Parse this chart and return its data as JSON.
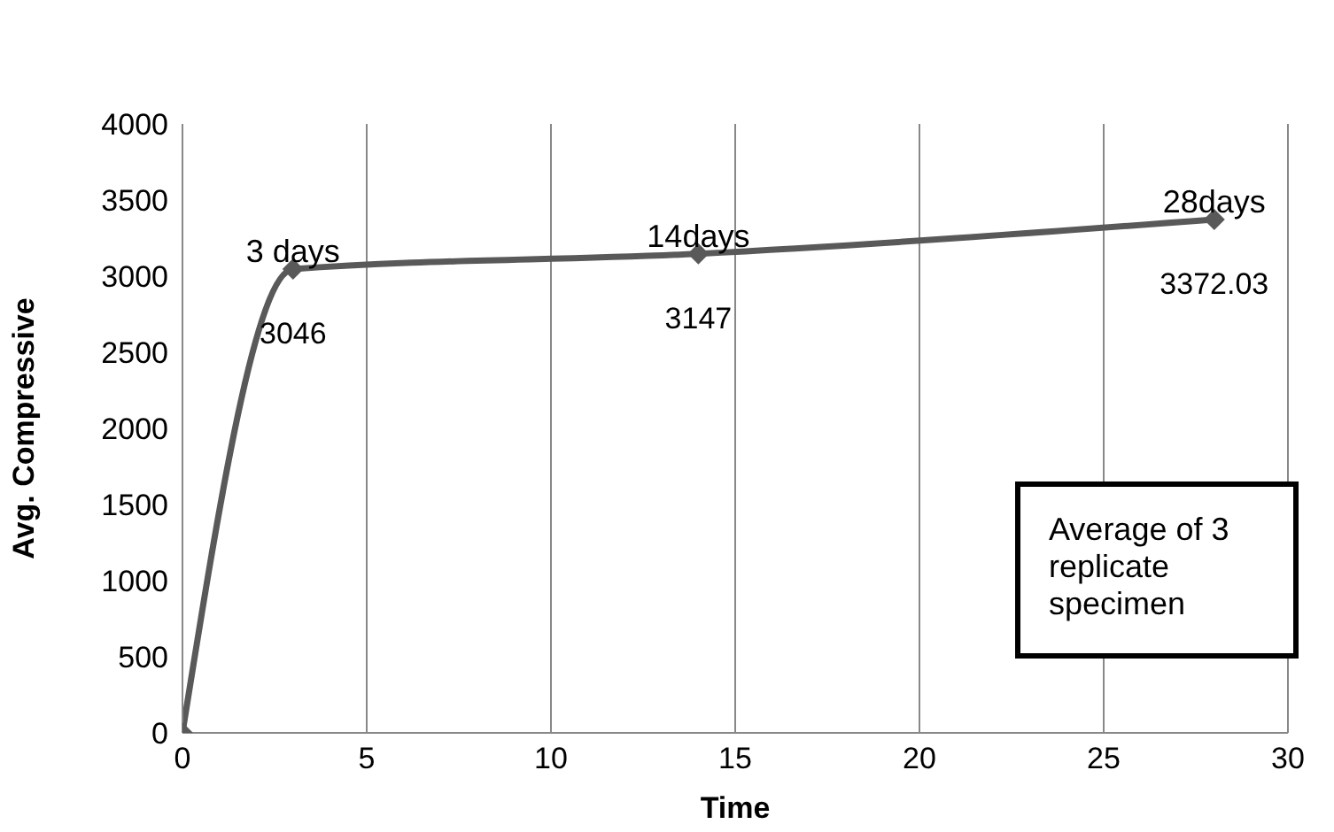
{
  "chart_data": {
    "type": "line",
    "xlabel": "Time",
    "ylabel": "Avg. Compressive",
    "x": [
      0,
      3,
      14,
      28
    ],
    "series": [
      {
        "color": "#595959",
        "values": [
          0,
          3046,
          3147,
          3372.03
        ],
        "value_labels": [
          null,
          "3046",
          "3147",
          "3372.03"
        ]
      }
    ],
    "xlim": [
      0,
      30
    ],
    "xticks": [
      0,
      5,
      10,
      15,
      20,
      25,
      30
    ],
    "ylim": [
      0,
      4000
    ],
    "yticks": [
      0,
      500,
      1000,
      1500,
      2000,
      2500,
      3000,
      3500,
      4000
    ],
    "grid": "x",
    "legend": false,
    "marker": "diamond",
    "line_style": "solid",
    "annotations": [
      {
        "text": "3 days",
        "x": 3,
        "y": 3046
      },
      {
        "text": "14days",
        "x": 14,
        "y": 3147
      },
      {
        "text": "28days",
        "x": 28,
        "y": 3372.03
      },
      "Average of 3 replicate specimen"
    ]
  }
}
